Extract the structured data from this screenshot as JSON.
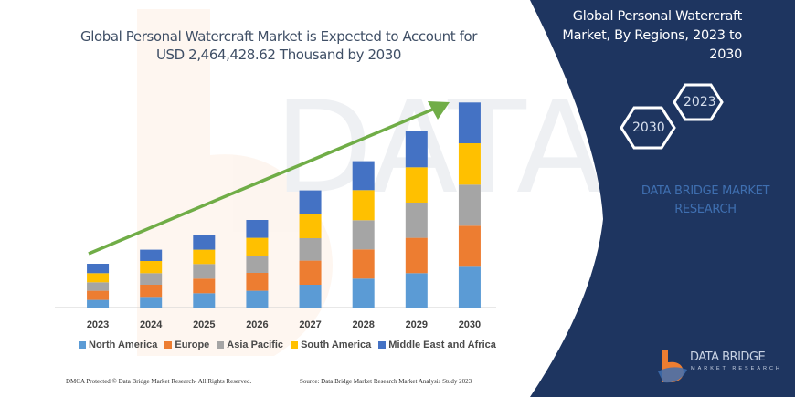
{
  "header": {
    "title_line1": "Global Personal Watercraft Market is Expected to Account for",
    "title_line2": "USD 2,464,428.62 Thousand by 2030"
  },
  "side_panel": {
    "title_line1": "Global Personal Watercraft",
    "title_line2": "Market, By Regions, 2023 to",
    "title_line3": "2030",
    "hex_2023": "2023",
    "hex_2030": "2030",
    "brand_line1": "DATA BRIDGE MARKET",
    "brand_line2": "RESEARCH",
    "panel_color": "#1e3560"
  },
  "logo": {
    "name": "DATA BRIDGE",
    "sub": "MARKET RESEARCH"
  },
  "footer": {
    "copyright": "DMCA Protected © Data Bridge Market Research-  All Rights Reserved.",
    "source": "Source: Data Bridge Market Research  Market Analysis Study 2023"
  },
  "chart_data": {
    "type": "bar",
    "stacked": true,
    "categories": [
      "2023",
      "2024",
      "2025",
      "2026",
      "2027",
      "2028",
      "2029",
      "2030"
    ],
    "series": [
      {
        "name": "North America",
        "color": "#5b9bd5",
        "values": [
          8.4,
          11.7,
          15.7,
          18.4,
          25,
          31.7,
          37.7,
          44.7
        ]
      },
      {
        "name": "Europe",
        "color": "#ed7d31",
        "values": [
          10,
          13.3,
          16,
          19.6,
          26.4,
          32,
          38.7,
          45
        ]
      },
      {
        "name": "Asia Pacific",
        "color": "#a5a5a5",
        "values": [
          9.3,
          12.7,
          16,
          18.4,
          24.6,
          32,
          38.6,
          45
        ]
      },
      {
        "name": "South America",
        "color": "#ffc000",
        "values": [
          10,
          13.3,
          15.7,
          20,
          26.4,
          33,
          38.7,
          45.3
        ]
      },
      {
        "name": "Middle East and Africa",
        "color": "#4472c4",
        "values": [
          10.3,
          12.4,
          16.6,
          19.6,
          26,
          31.7,
          39.3,
          44.7
        ]
      }
    ],
    "trend_arrow_color": "#70ad47",
    "legend_position": "bottom",
    "grid": false,
    "y_axis_shown": false,
    "ylim": [
      0,
      230
    ]
  }
}
